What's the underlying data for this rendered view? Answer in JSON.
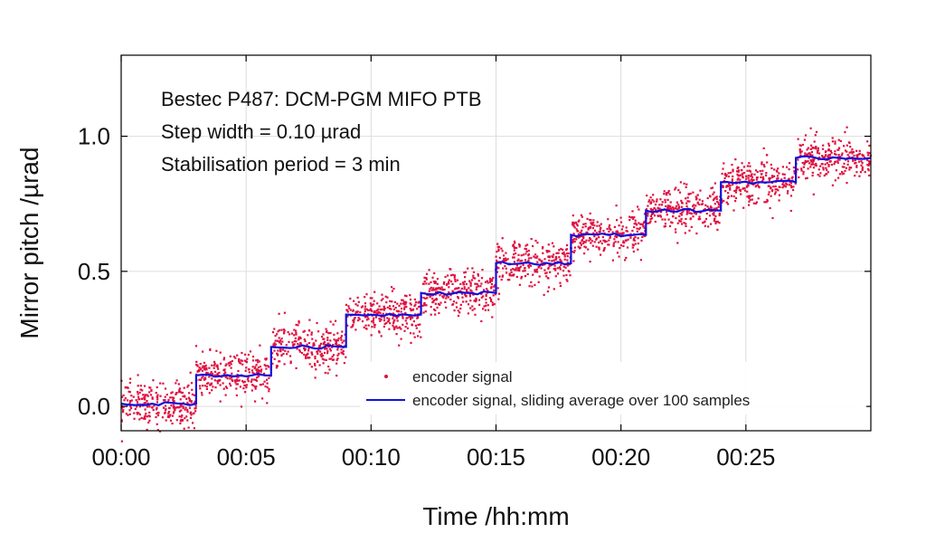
{
  "chart_data": {
    "type": "scatter",
    "xlabel": "Time /hh:mm",
    "ylabel": "Mirror pitch /µrad",
    "xlim": [
      0,
      30
    ],
    "ylim": [
      -0.09,
      1.3
    ],
    "x_ticks": [
      {
        "value": 0,
        "label": "00:00"
      },
      {
        "value": 5,
        "label": "00:05"
      },
      {
        "value": 10,
        "label": "00:10"
      },
      {
        "value": 15,
        "label": "00:15"
      },
      {
        "value": 20,
        "label": "00:20"
      },
      {
        "value": 25,
        "label": "00:25"
      }
    ],
    "y_ticks": [
      {
        "value": 0.0,
        "label": "0.0"
      },
      {
        "value": 0.5,
        "label": "0.5"
      },
      {
        "value": 1.0,
        "label": "1.0"
      }
    ],
    "grid": true,
    "legend_position": "bottom-right",
    "annotations": [
      "Bestec P487: DCM-PGM MIFO PTB",
      "Step width = 0.10 µrad",
      "Stabilisation period = 3 min"
    ],
    "series": [
      {
        "name": "encoder signal",
        "style": "points",
        "color": "#e0103f",
        "spread_urad": 0.04
      },
      {
        "name": "encoder signal, sliding average over 100 samples",
        "style": "line",
        "color": "#1111dd"
      }
    ],
    "steps": [
      {
        "start_min": 0,
        "end_min": 3,
        "level": 0.01
      },
      {
        "start_min": 3,
        "end_min": 6,
        "level": 0.115
      },
      {
        "start_min": 6,
        "end_min": 9,
        "level": 0.22
      },
      {
        "start_min": 9,
        "end_min": 12,
        "level": 0.34
      },
      {
        "start_min": 12,
        "end_min": 15,
        "level": 0.42
      },
      {
        "start_min": 15,
        "end_min": 18,
        "level": 0.53
      },
      {
        "start_min": 18,
        "end_min": 21,
        "level": 0.635
      },
      {
        "start_min": 21,
        "end_min": 24,
        "level": 0.725
      },
      {
        "start_min": 24,
        "end_min": 27,
        "level": 0.83
      },
      {
        "start_min": 27,
        "end_min": 30,
        "level": 0.92
      }
    ]
  },
  "colors": {
    "scatter": "#e0103f",
    "average": "#1111dd",
    "axis": "#000000",
    "grid": "#dddddd"
  }
}
